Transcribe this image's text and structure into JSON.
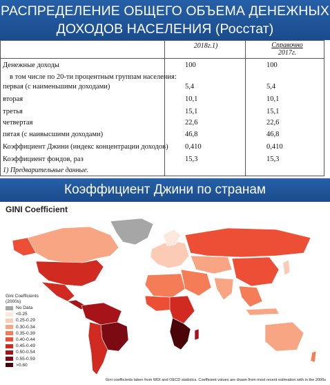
{
  "header": {
    "line1": "РАСПРЕДЕЛЕНИЕ ОБЩЕГО ОБЪЕМА ДЕНЕЖНЫХ",
    "line2": "ДОХОДОВ НАСЕЛЕНИЯ (Росстат)"
  },
  "table": {
    "col1_header": "2018г.1)",
    "col2_header_l1": "Справочно",
    "col2_header_l2": "2017г.",
    "rows": [
      {
        "label": "Денежные доходы",
        "v1": "100",
        "v2": "100"
      },
      {
        "label": "в том числе по 20-ти процентным группам населения:",
        "v1": "",
        "v2": ""
      },
      {
        "label": "первая (с наименьшими доходами)",
        "v1": "5,4",
        "v2": "5,4"
      },
      {
        "label": "вторая",
        "v1": "10,1",
        "v2": "10,1"
      },
      {
        "label": "третья",
        "v1": "15,1",
        "v2": "15,1"
      },
      {
        "label": "четвертая",
        "v1": "22,6",
        "v2": "22,6"
      },
      {
        "label": "пятая (с наивысшими доходами)",
        "v1": "46,8",
        "v2": "46,8"
      },
      {
        "label": "Коэффициент Джини (индекс концентрации доходов)",
        "v1": "0,410",
        "v2": "0,410"
      },
      {
        "label": "Коэффициент фондов, раз",
        "v1": "15,3",
        "v2": "15,3"
      }
    ],
    "footnote": "1) Предварительные данные."
  },
  "subheader": "Коэффициент Джини по странам",
  "map": {
    "title": "GINI Coefficient",
    "legend_title_l1": "Gini Coefficients",
    "legend_title_l2": "(2000s)",
    "legend": [
      {
        "label": "No Data",
        "color": "#a6a6a6"
      },
      {
        "label": "<0.25",
        "color": "#fde8df"
      },
      {
        "label": "0.25-0.29",
        "color": "#fbcbb5"
      },
      {
        "label": "0.30-0.34",
        "color": "#f8a583"
      },
      {
        "label": "0.35-0.39",
        "color": "#f47c57"
      },
      {
        "label": "0.40-0.44",
        "color": "#ec4f35"
      },
      {
        "label": "0.45-0.49",
        "color": "#d12a20"
      },
      {
        "label": "0.50-0.54",
        "color": "#a6141a"
      },
      {
        "label": "0.55-0.59",
        "color": "#7c0a13"
      },
      {
        "label": ">0.60",
        "color": "#4a0509"
      }
    ],
    "footnote": "Gini coefficients taken from WDI and OECD statistics. Coefficient values are drawn from most recent estimation with in the 2000s"
  }
}
